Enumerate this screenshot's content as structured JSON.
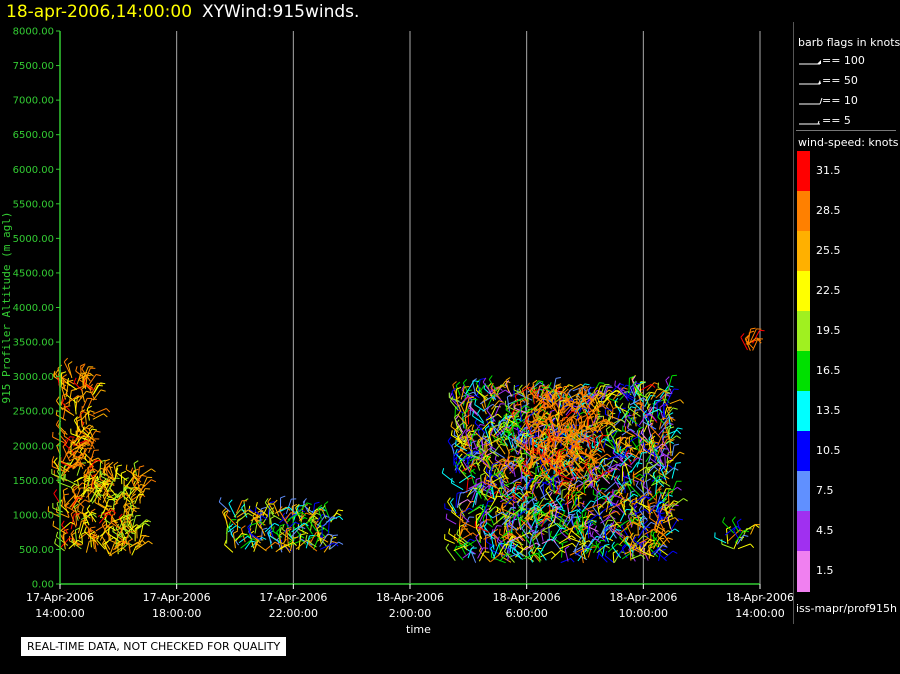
{
  "header": {
    "datetime": "18-apr-2006,14:00:00",
    "name": "XYWind:915winds."
  },
  "colors": {
    "axis": "#33cc33",
    "grid": "#aaaaaa",
    "title_datetime": "#ffff00",
    "background": "#000000"
  },
  "barb_legend": {
    "title": "barb flags in knots",
    "items": [
      "== 100",
      "== 50",
      "== 10",
      "== 5"
    ]
  },
  "colorbar": {
    "title": "wind-speed: knots",
    "segments": [
      {
        "label": "31.5",
        "color": "#ff0000"
      },
      {
        "label": "28.5",
        "color": "#ff8000"
      },
      {
        "label": "25.5",
        "color": "#ffb000"
      },
      {
        "label": "22.5",
        "color": "#ffff00"
      },
      {
        "label": "19.5",
        "color": "#a0f020"
      },
      {
        "label": "16.5",
        "color": "#00e000"
      },
      {
        "label": "13.5",
        "color": "#00ffff"
      },
      {
        "label": "10.5",
        "color": "#0000ff"
      },
      {
        "label": "7.5",
        "color": "#6090ff"
      },
      {
        "label": "4.5",
        "color": "#a030f0"
      },
      {
        "label": "1.5",
        "color": "#f080f0"
      }
    ]
  },
  "source_text": "iss-mapr/prof915h",
  "notice": "REAL-TIME DATA, NOT CHECKED FOR QUALITY",
  "chart_data": {
    "type": "scatter",
    "title": "18-apr-2006,14:00:00  XYWind:915winds.",
    "xlabel": "time",
    "ylabel": "915 Profiler Altitude (m agl)",
    "xlim": [
      0,
      24
    ],
    "ylim": [
      0,
      8000
    ],
    "grid": true,
    "x_ticks": [
      {
        "line1": "17-Apr-2006",
        "line2": "14:00:00",
        "hour": 0
      },
      {
        "line1": "17-Apr-2006",
        "line2": "18:00:00",
        "hour": 4
      },
      {
        "line1": "17-Apr-2006",
        "line2": "22:00:00",
        "hour": 8
      },
      {
        "line1": "18-Apr-2006",
        "line2": "2:00:00",
        "hour": 12
      },
      {
        "line1": "18-Apr-2006",
        "line2": "6:00:00",
        "hour": 16
      },
      {
        "line1": "18-Apr-2006",
        "line2": "10:00:00",
        "hour": 20
      },
      {
        "line1": "18-Apr-2006",
        "line2": "14:00:00",
        "hour": 24
      }
    ],
    "y_ticks": [
      "0.00",
      "500.00",
      "1000.00",
      "1500.00",
      "2000.00",
      "2500.00",
      "3000.00",
      "3500.00",
      "4000.00",
      "4500.00",
      "5000.00",
      "5500.00",
      "6000.00",
      "6500.00",
      "7000.00",
      "7500.00",
      "8000.00"
    ],
    "y_tick_values": [
      0,
      500,
      1000,
      1500,
      2000,
      2500,
      3000,
      3500,
      4000,
      4500,
      5000,
      5500,
      6000,
      6500,
      7000,
      7500,
      8000
    ],
    "clusters": [
      {
        "hours": [
          0.0,
          2.8
        ],
        "alt": [
          400,
          1600
        ],
        "speed": [
          20,
          32
        ]
      },
      {
        "hours": [
          0.0,
          1.2
        ],
        "alt": [
          1600,
          3050
        ],
        "speed": [
          24,
          32
        ]
      },
      {
        "hours": [
          5.7,
          9.3
        ],
        "alt": [
          450,
          1050
        ],
        "speed": [
          8,
          30
        ]
      },
      {
        "hours": [
          13.5,
          21.0
        ],
        "alt": [
          300,
          2800
        ],
        "speed": [
          4,
          32
        ]
      },
      {
        "hours": [
          16.0,
          18.5
        ],
        "alt": [
          1500,
          2700
        ],
        "speed": [
          28,
          32
        ]
      },
      {
        "hours": [
          22.8,
          23.7
        ],
        "alt": [
          500,
          750
        ],
        "speed": [
          10,
          30
        ]
      },
      {
        "hours": [
          23.5,
          23.8
        ],
        "alt": [
          3350,
          3500
        ],
        "speed": [
          31,
          32
        ]
      }
    ]
  }
}
